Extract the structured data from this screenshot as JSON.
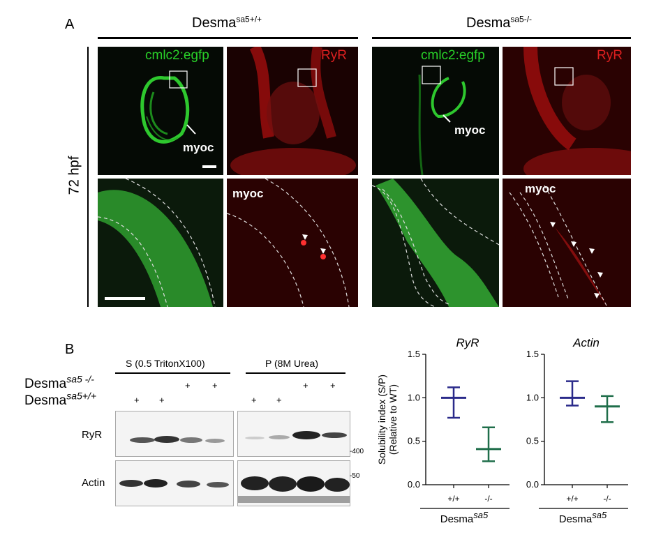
{
  "panelA": {
    "letter": "A",
    "genotype_wt": {
      "base": "Desma",
      "sup": "sa5+/+"
    },
    "genotype_mut": {
      "base": "Desma",
      "sup": "sa5-/-"
    },
    "stage": "72 hpf",
    "label_green": "cmlc2:egfp",
    "label_red": "RyR",
    "label_myoc": "myoc"
  },
  "panelB": {
    "letter": "B",
    "col_s": "S (0.5 TritonX100)",
    "col_p": "P (8M Urea)",
    "row_mut": {
      "base": "Desma",
      "sup": "sa5 -/-"
    },
    "row_wt": {
      "base": "Desma",
      "sup": "sa5+/+"
    },
    "plus": "+",
    "ryr_label": "RyR",
    "actin_label": "Actin",
    "mw_400": "-400",
    "mw_50": "-50"
  },
  "colors": {
    "wt_series": "#2a2a8a",
    "mut_series": "#1f6e4a",
    "green": "#29d129",
    "red": "#e02020"
  },
  "chart_data": [
    {
      "type": "scatter",
      "title": "RyR",
      "ylabel": "Solubility index (S/P)",
      "ylabel2": "(Relative to WT)",
      "xlabel_base": "Desma",
      "xlabel_sup": "sa5",
      "categories": [
        "+/+",
        "-/-"
      ],
      "ylim": [
        0,
        1.5
      ],
      "yticks": [
        "0.0",
        "0.5",
        "1.0",
        "1.5"
      ],
      "series": [
        {
          "mean": 1.0,
          "low": 0.77,
          "high": 1.12
        },
        {
          "mean": 0.41,
          "low": 0.27,
          "high": 0.66
        }
      ]
    },
    {
      "type": "scatter",
      "title": "Actin",
      "xlabel_base": "Desma",
      "xlabel_sup": "sa5",
      "categories": [
        "+/+",
        "-/-"
      ],
      "ylim": [
        0,
        1.5
      ],
      "yticks": [
        "0.0",
        "0.5",
        "1.0",
        "1.5"
      ],
      "series": [
        {
          "mean": 1.0,
          "low": 0.91,
          "high": 1.19
        },
        {
          "mean": 0.9,
          "low": 0.72,
          "high": 1.02
        }
      ]
    }
  ]
}
